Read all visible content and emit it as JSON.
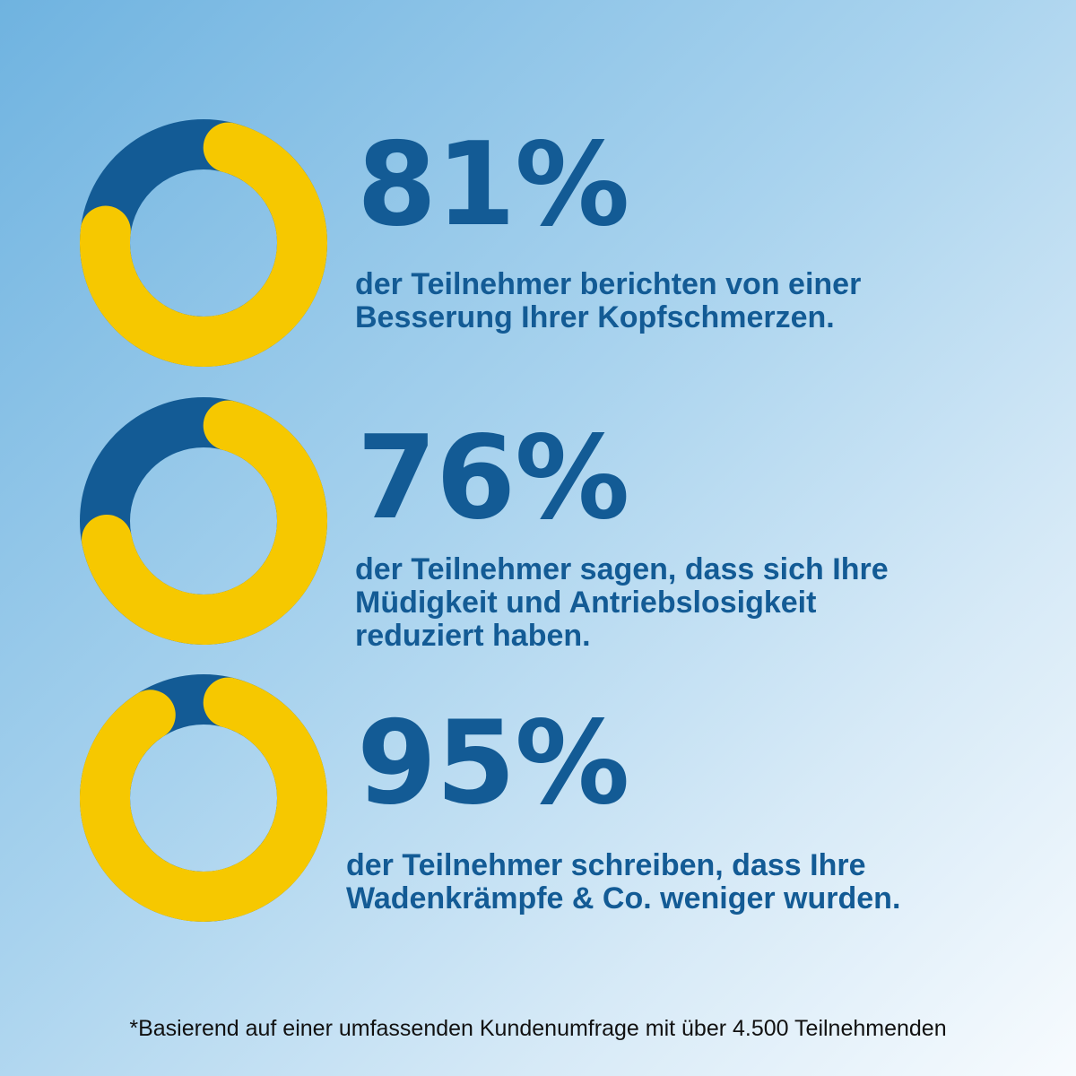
{
  "colors": {
    "primary": "#135b95",
    "accent": "#f6c800",
    "text": "#135b95",
    "footnote": "#111111"
  },
  "chart_data": [
    {
      "type": "pie",
      "style": "donut",
      "value_percent": 81,
      "slices": [
        {
          "share": 81,
          "color": "#f6c800"
        },
        {
          "share": 19,
          "color": "#135b95"
        }
      ],
      "label": "81%",
      "description": [
        "der Teilnehmer berichten von einer",
        "Besserung Ihrer Kopfschmerzen."
      ]
    },
    {
      "type": "pie",
      "style": "donut",
      "value_percent": 76,
      "slices": [
        {
          "share": 76,
          "color": "#f6c800"
        },
        {
          "share": 24,
          "color": "#135b95"
        }
      ],
      "label": "76%",
      "description": [
        "der Teilnehmer sagen, dass sich Ihre",
        "Müdigkeit und Antriebslosigkeit",
        "reduziert haben."
      ]
    },
    {
      "type": "pie",
      "style": "donut",
      "value_percent": 95,
      "slices": [
        {
          "share": 95,
          "color": "#f6c800"
        },
        {
          "share": 5,
          "color": "#135b95"
        }
      ],
      "label": "95%",
      "description": [
        "der Teilnehmer schreiben, dass Ihre",
        "Wadenkrämpfe & Co. weniger wurden."
      ]
    }
  ],
  "footnote": "*Basierend auf einer umfassenden Kundenumfrage mit über 4.500 Teilnehmenden"
}
